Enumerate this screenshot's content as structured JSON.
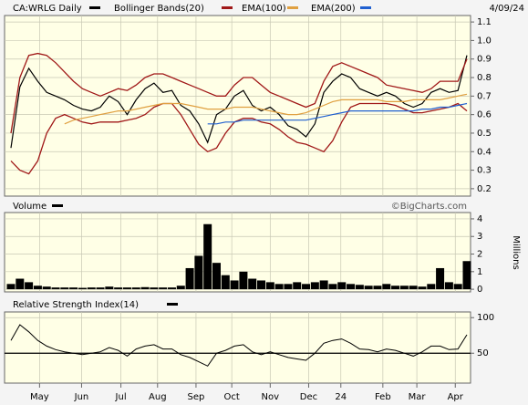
{
  "chart_data": [
    {
      "type": "line",
      "title": "CA:WRLG Daily",
      "date": "4/09/24",
      "source": "©BigCharts.com",
      "x": [
        0,
        1,
        2,
        3,
        4,
        5,
        6,
        7,
        8,
        9,
        10,
        11,
        12,
        13,
        14,
        15,
        16,
        17,
        18,
        19,
        20,
        21,
        22,
        23,
        24,
        25,
        26,
        27,
        28,
        29,
        30,
        31,
        32,
        33,
        34,
        35,
        36,
        37,
        38,
        39,
        40,
        41,
        42,
        43,
        44,
        45,
        46,
        47,
        48,
        49,
        50,
        51
      ],
      "xlim": [
        0,
        51
      ],
      "ylim": [
        0.16,
        1.135
      ],
      "yticks": [
        0.2,
        0.3,
        0.4,
        0.5,
        0.6,
        0.7,
        0.8,
        0.9,
        {
          "value": 1,
          "label": "1.0"
        },
        1.1
      ],
      "grid": true,
      "series": [
        {
          "name": "CA:WRLG Daily",
          "color": "#000000",
          "values": [
            0.42,
            0.75,
            0.85,
            0.78,
            0.72,
            0.7,
            0.68,
            0.65,
            0.63,
            0.62,
            0.64,
            0.7,
            0.67,
            0.6,
            0.68,
            0.74,
            0.77,
            0.72,
            0.73,
            0.65,
            0.62,
            0.55,
            0.45,
            0.6,
            0.63,
            0.7,
            0.73,
            0.65,
            0.62,
            0.64,
            0.6,
            0.54,
            0.52,
            0.48,
            0.55,
            0.72,
            0.78,
            0.82,
            0.8,
            0.74,
            0.72,
            0.7,
            0.72,
            0.7,
            0.66,
            0.64,
            0.66,
            0.72,
            0.74,
            0.72,
            0.73,
            0.92
          ]
        },
        {
          "name": "Bollinger Bands(20)",
          "color": "#a01818",
          "upper": [
            0.5,
            0.8,
            0.92,
            0.93,
            0.92,
            0.88,
            0.83,
            0.78,
            0.74,
            0.72,
            0.7,
            0.72,
            0.74,
            0.73,
            0.76,
            0.8,
            0.82,
            0.82,
            0.8,
            0.78,
            0.76,
            0.74,
            0.72,
            0.7,
            0.7,
            0.76,
            0.8,
            0.8,
            0.76,
            0.72,
            0.7,
            0.68,
            0.66,
            0.64,
            0.66,
            0.78,
            0.86,
            0.88,
            0.86,
            0.84,
            0.82,
            0.8,
            0.76,
            0.75,
            0.74,
            0.73,
            0.72,
            0.74,
            0.78,
            0.78,
            0.78,
            0.9
          ],
          "lower": [
            0.35,
            0.3,
            0.28,
            0.35,
            0.5,
            0.58,
            0.6,
            0.58,
            0.56,
            0.55,
            0.56,
            0.56,
            0.56,
            0.57,
            0.58,
            0.6,
            0.64,
            0.66,
            0.66,
            0.6,
            0.52,
            0.44,
            0.4,
            0.42,
            0.5,
            0.56,
            0.58,
            0.58,
            0.56,
            0.55,
            0.52,
            0.48,
            0.45,
            0.44,
            0.42,
            0.4,
            0.46,
            0.56,
            0.64,
            0.66,
            0.66,
            0.66,
            0.66,
            0.65,
            0.63,
            0.61,
            0.61,
            0.62,
            0.63,
            0.64,
            0.66,
            0.62
          ]
        },
        {
          "name": "EMA(100)",
          "color": "#e0a040",
          "values": [
            null,
            null,
            null,
            null,
            null,
            null,
            0.55,
            0.57,
            0.58,
            0.59,
            0.6,
            0.61,
            0.62,
            0.62,
            0.63,
            0.64,
            0.65,
            0.66,
            0.66,
            0.66,
            0.65,
            0.64,
            0.63,
            0.63,
            0.63,
            0.64,
            0.64,
            0.64,
            0.63,
            0.62,
            0.61,
            0.6,
            0.6,
            0.61,
            0.63,
            0.65,
            0.67,
            0.68,
            0.68,
            0.68,
            0.68,
            0.68,
            0.67,
            0.67,
            0.67,
            0.68,
            0.68,
            0.68,
            0.68,
            0.69,
            0.7,
            0.71
          ]
        },
        {
          "name": "EMA(200)",
          "color": "#2060d0",
          "values": [
            null,
            null,
            null,
            null,
            null,
            null,
            null,
            null,
            null,
            null,
            null,
            null,
            null,
            null,
            null,
            null,
            null,
            null,
            null,
            null,
            null,
            null,
            0.55,
            0.55,
            0.56,
            0.56,
            0.57,
            0.57,
            0.57,
            0.57,
            0.57,
            0.57,
            0.57,
            0.57,
            0.58,
            0.59,
            0.6,
            0.61,
            0.62,
            0.62,
            0.62,
            0.62,
            0.62,
            0.62,
            0.62,
            0.62,
            0.63,
            0.63,
            0.64,
            0.64,
            0.65,
            0.66
          ]
        }
      ]
    },
    {
      "type": "bar",
      "title": "Volume",
      "y_label": "Millions",
      "color": "#000000",
      "ylim": [
        -0.15,
        4.36
      ],
      "yticks": [
        0,
        1,
        2,
        3,
        4
      ],
      "grid": true,
      "values": [
        0.3,
        0.6,
        0.4,
        0.2,
        0.15,
        0.1,
        0.1,
        0.1,
        0.08,
        0.1,
        0.1,
        0.15,
        0.1,
        0.1,
        0.1,
        0.12,
        0.1,
        0.1,
        0.1,
        0.2,
        1.2,
        1.9,
        3.7,
        1.5,
        0.8,
        0.5,
        1.0,
        0.6,
        0.5,
        0.4,
        0.3,
        0.3,
        0.4,
        0.3,
        0.4,
        0.5,
        0.3,
        0.4,
        0.3,
        0.25,
        0.2,
        0.2,
        0.3,
        0.2,
        0.2,
        0.2,
        0.15,
        0.3,
        1.2,
        0.4,
        0.3,
        1.6
      ]
    },
    {
      "type": "line",
      "title": "Relative Strength Index(14)",
      "color": "#000000",
      "ylim": [
        8,
        108
      ],
      "yticks": [
        50,
        100
      ],
      "hline": 50,
      "grid": true,
      "values": [
        68,
        90,
        80,
        68,
        60,
        55,
        52,
        50,
        48,
        50,
        52,
        58,
        54,
        46,
        56,
        60,
        62,
        56,
        56,
        48,
        44,
        38,
        32,
        50,
        54,
        60,
        62,
        52,
        48,
        52,
        48,
        44,
        42,
        40,
        50,
        64,
        68,
        70,
        64,
        56,
        55,
        52,
        56,
        54,
        50,
        46,
        52,
        60,
        60,
        55,
        56,
        76
      ],
      "xticks": [
        {
          "value": 3.2,
          "label": "May"
        },
        {
          "value": 7.9,
          "label": "Jun"
        },
        {
          "value": 12.3,
          "label": "Jul"
        },
        {
          "value": 16.4,
          "label": "Aug"
        },
        {
          "value": 20.7,
          "label": "Sep"
        },
        {
          "value": 24.7,
          "label": "Oct"
        },
        {
          "value": 29,
          "label": "Nov"
        },
        {
          "value": 33.3,
          "label": "Dec"
        },
        {
          "value": 36.9,
          "label": "24"
        },
        {
          "value": 41.6,
          "label": "Feb"
        },
        {
          "value": 45.4,
          "label": "Mar"
        },
        {
          "value": 49.7,
          "label": "Apr"
        }
      ]
    }
  ]
}
